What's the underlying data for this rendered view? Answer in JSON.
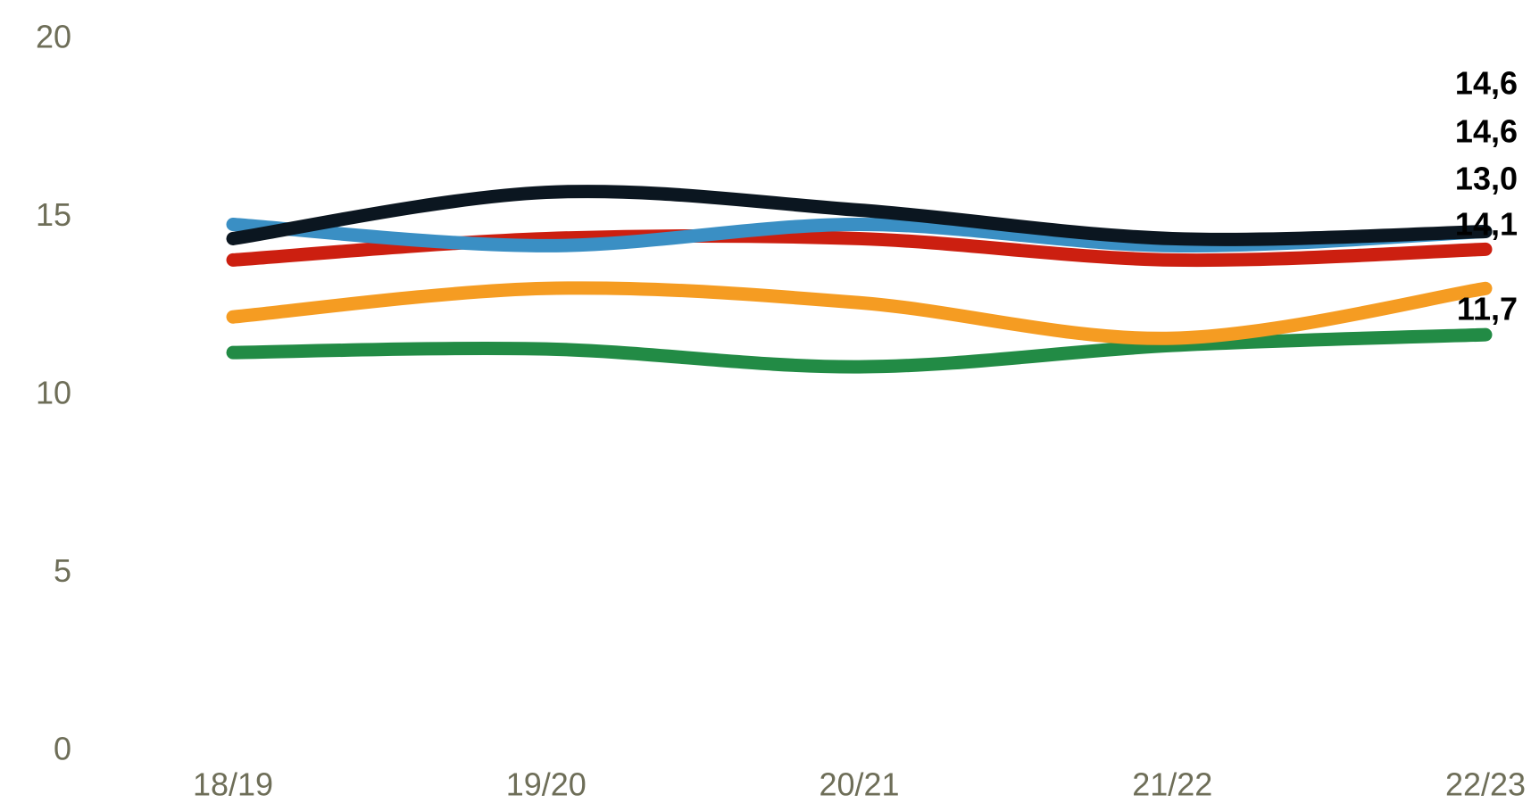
{
  "chart_data": {
    "type": "line",
    "categories": [
      "18/19",
      "19/20",
      "20/21",
      "21/22",
      "22/23"
    ],
    "series": [
      {
        "color": "#0b1620",
        "values": [
          14.4,
          15.7,
          15.2,
          14.4,
          14.6
        ],
        "value_labels": [
          null,
          null,
          null,
          null,
          "14,6"
        ]
      },
      {
        "color": "#3a8fc4",
        "values": [
          14.8,
          14.2,
          14.8,
          14.2,
          14.6
        ],
        "value_labels": [
          null,
          null,
          null,
          null,
          "14,6"
        ]
      },
      {
        "color": "#f59c22",
        "values": [
          12.2,
          13.0,
          12.6,
          11.6,
          13.0
        ],
        "value_labels": [
          null,
          null,
          null,
          null,
          "13,0"
        ]
      },
      {
        "color": "#cc1f10",
        "values": [
          13.8,
          14.4,
          14.4,
          13.8,
          14.1
        ],
        "value_labels": [
          null,
          null,
          null,
          null,
          "14,1"
        ]
      },
      {
        "color": "#228b45",
        "values": [
          11.2,
          11.3,
          10.8,
          11.4,
          11.7
        ],
        "value_labels": [
          null,
          null,
          null,
          null,
          "11,7"
        ]
      }
    ],
    "ylim": [
      0,
      20
    ],
    "yticks": [
      0,
      5,
      10,
      15,
      20
    ],
    "grid": false
  }
}
